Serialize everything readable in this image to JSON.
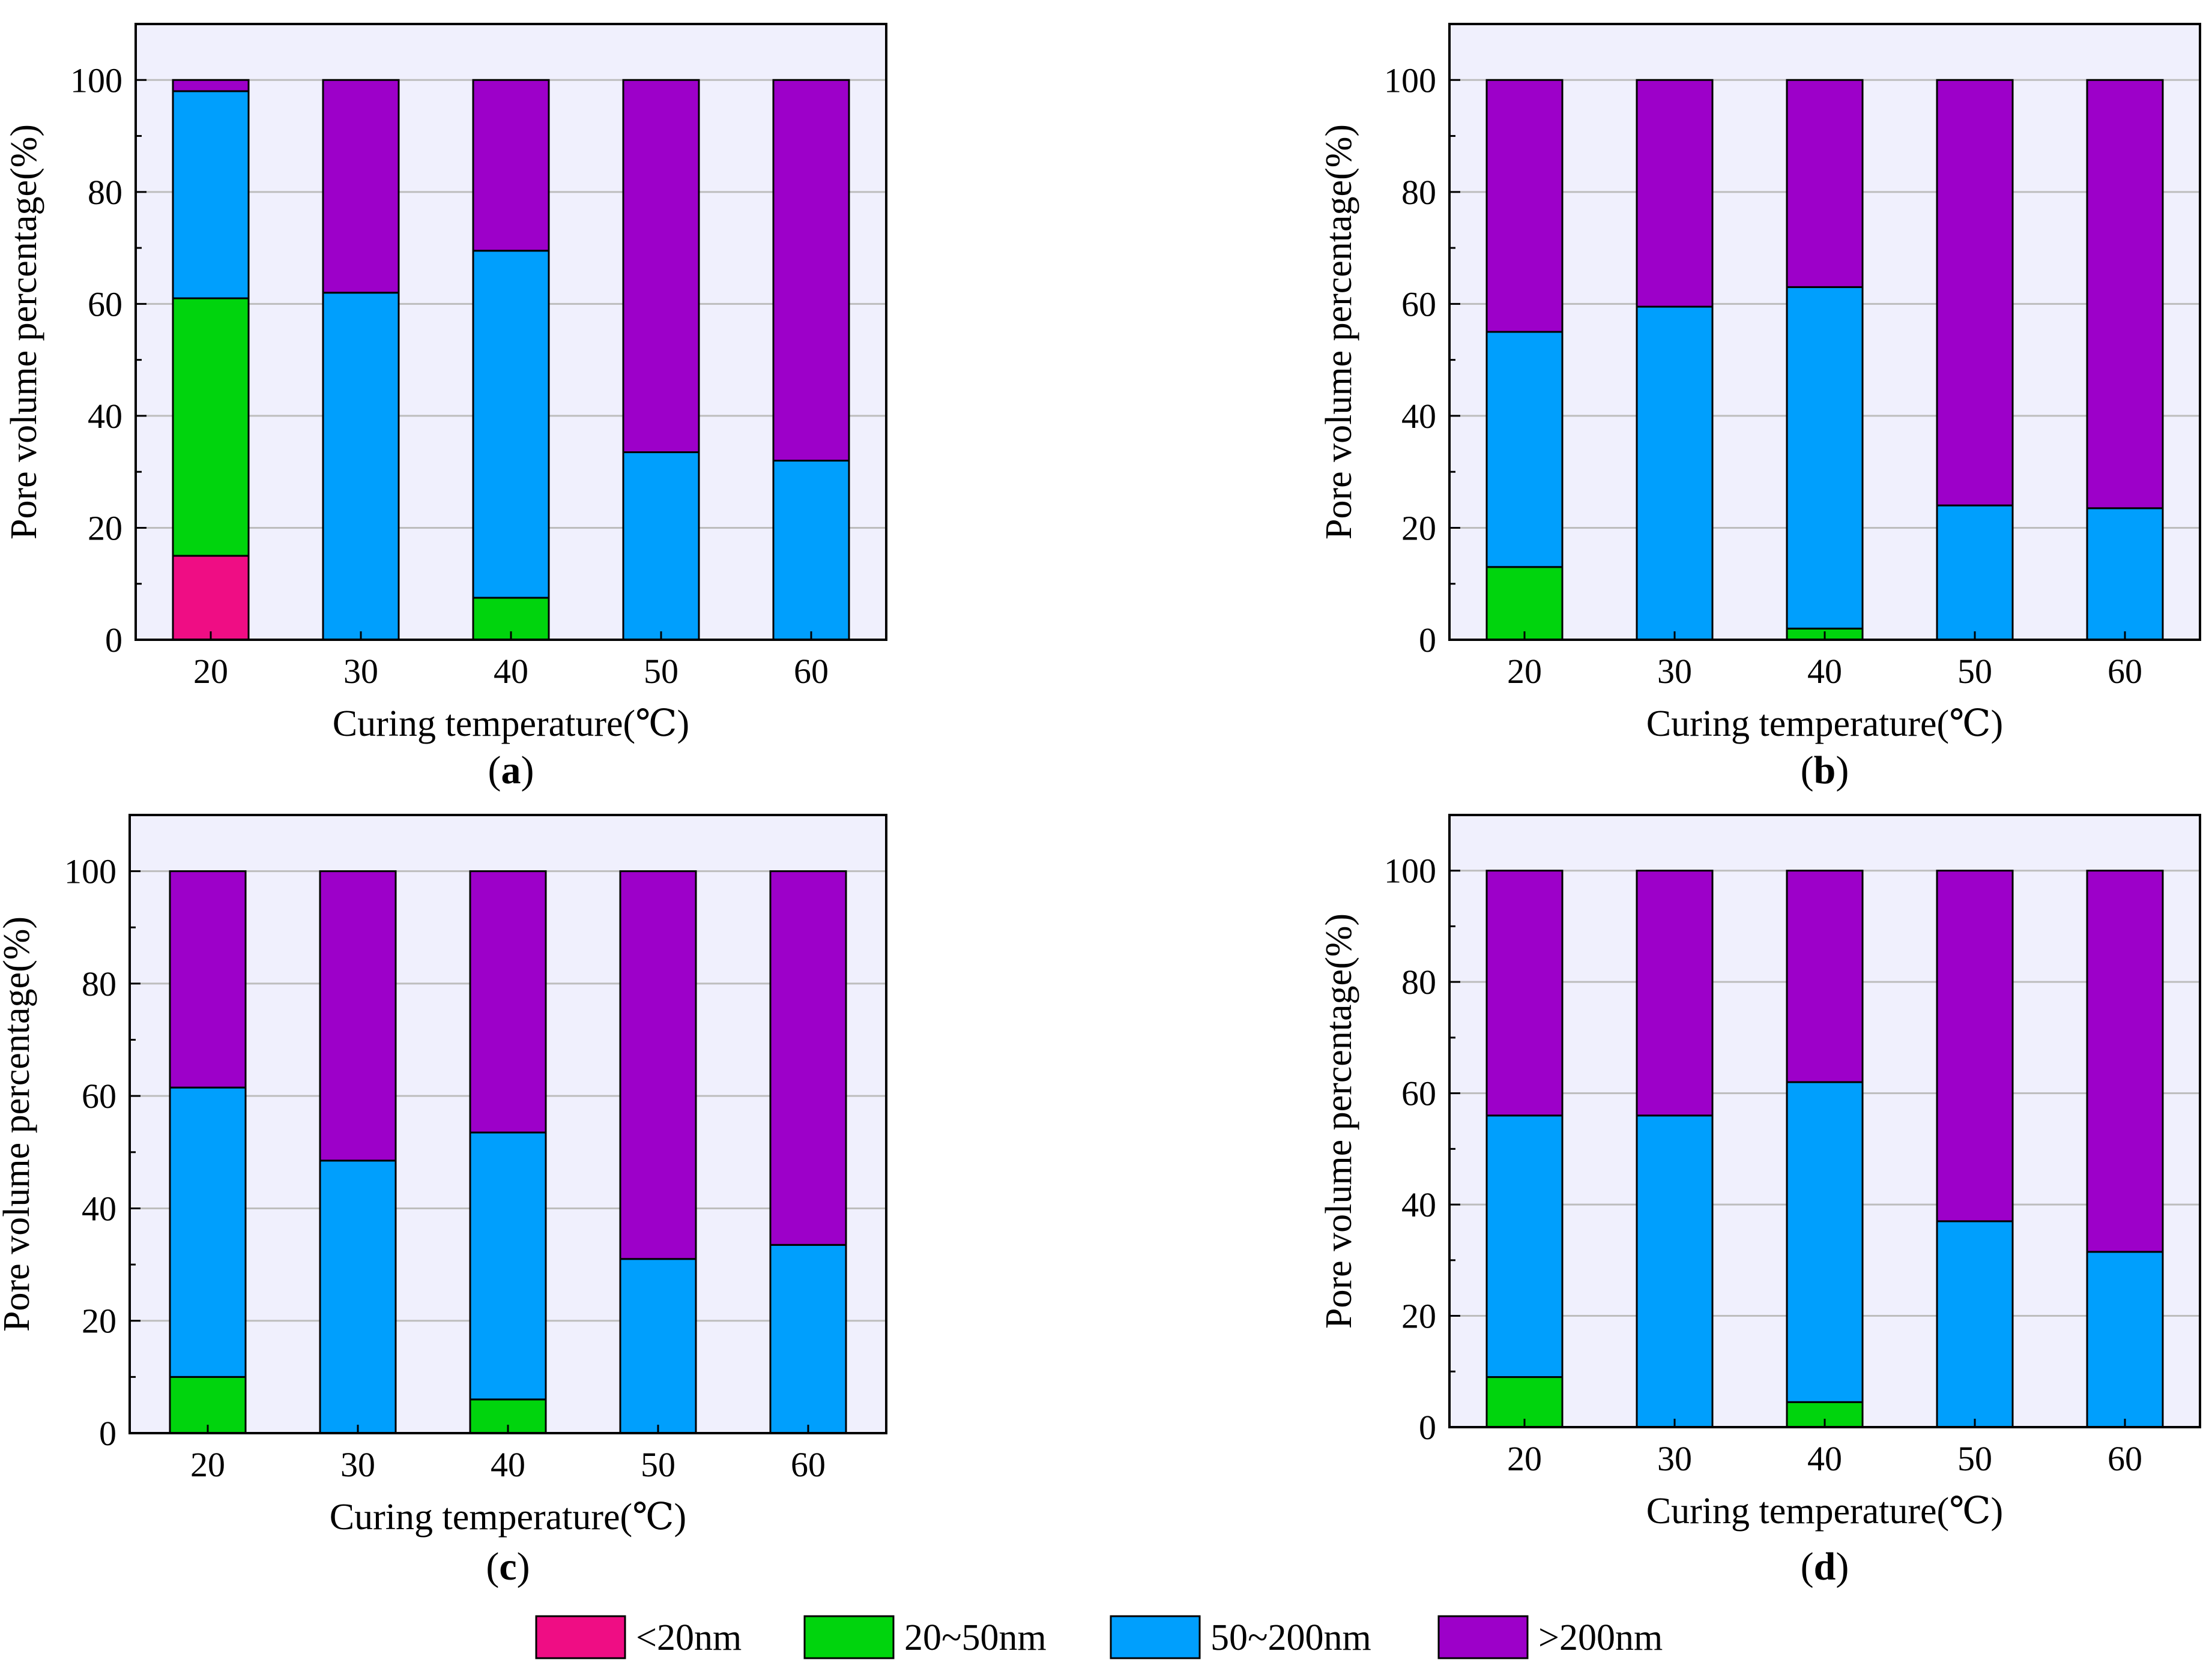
{
  "colors": {
    "plot_background": "#f0f0fd",
    "gridline": "#bdbdbd",
    "series": [
      "#ef0d84",
      "#00d40d",
      "#009ffd",
      "#9d00c9"
    ]
  },
  "legend": {
    "items": [
      {
        "label": "<20nm",
        "color": "#ef0d84"
      },
      {
        "label": "20~50nm",
        "color": "#00d40d"
      },
      {
        "label": "50~200nm",
        "color": "#009ffd"
      },
      {
        "label": ">200nm",
        "color": "#9d00c9"
      }
    ]
  },
  "chart_data": [
    {
      "type": "bar",
      "stacked": true,
      "caption_letter": "a",
      "xlabel": "Curing temperature(℃)",
      "ylabel": "Pore volume percentage(%)",
      "categories": [
        "20",
        "30",
        "40",
        "50",
        "60"
      ],
      "yticks": [
        "0",
        "20",
        "40",
        "60",
        "80",
        "100"
      ],
      "ylim": [
        0,
        110
      ],
      "grid": true,
      "series": [
        {
          "name": "<20nm",
          "values": [
            15,
            0,
            0,
            0,
            0
          ]
        },
        {
          "name": "20~50nm",
          "values": [
            46,
            0,
            7.5,
            0,
            0
          ]
        },
        {
          "name": "50~200nm",
          "values": [
            37,
            62,
            62,
            33.5,
            32
          ]
        },
        {
          "name": ">200nm",
          "values": [
            2,
            38,
            30.5,
            66.5,
            68
          ]
        }
      ]
    },
    {
      "type": "bar",
      "stacked": true,
      "caption_letter": "b",
      "xlabel": "Curing temperature(℃)",
      "ylabel": "Pore volume percentage(%)",
      "categories": [
        "20",
        "30",
        "40",
        "50",
        "60"
      ],
      "yticks": [
        "0",
        "20",
        "40",
        "60",
        "80",
        "100"
      ],
      "ylim": [
        0,
        110
      ],
      "grid": true,
      "series": [
        {
          "name": "<20nm",
          "values": [
            0,
            0,
            0,
            0,
            0
          ]
        },
        {
          "name": "20~50nm",
          "values": [
            13,
            0,
            2,
            0,
            0
          ]
        },
        {
          "name": "50~200nm",
          "values": [
            42,
            59.5,
            61,
            24,
            23.5
          ]
        },
        {
          "name": ">200nm",
          "values": [
            45,
            40.5,
            37,
            76,
            76.5
          ]
        }
      ]
    },
    {
      "type": "bar",
      "stacked": true,
      "caption_letter": "c",
      "xlabel": "Curing temperature(℃)",
      "ylabel": "Pore volume percentage(%)",
      "categories": [
        "20",
        "30",
        "40",
        "50",
        "60"
      ],
      "yticks": [
        "0",
        "20",
        "40",
        "60",
        "80",
        "100"
      ],
      "ylim": [
        0,
        110
      ],
      "grid": true,
      "series": [
        {
          "name": "<20nm",
          "values": [
            0,
            0,
            0,
            0,
            0
          ]
        },
        {
          "name": "20~50nm",
          "values": [
            10,
            0,
            6,
            0,
            0
          ]
        },
        {
          "name": "50~200nm",
          "values": [
            51.5,
            48.5,
            47.5,
            31,
            33.5
          ]
        },
        {
          "name": ">200nm",
          "values": [
            38.5,
            51.5,
            46.5,
            69,
            66.5
          ]
        }
      ]
    },
    {
      "type": "bar",
      "stacked": true,
      "caption_letter": "d",
      "xlabel": "Curing temperature(℃)",
      "ylabel": "Pore volume percentage(%)",
      "categories": [
        "20",
        "30",
        "40",
        "50",
        "60"
      ],
      "yticks": [
        "0",
        "20",
        "40",
        "60",
        "80",
        "100"
      ],
      "ylim": [
        0,
        110
      ],
      "grid": true,
      "series": [
        {
          "name": "<20nm",
          "values": [
            0,
            0,
            0,
            0,
            0
          ]
        },
        {
          "name": "20~50nm",
          "values": [
            9,
            0,
            4.5,
            0,
            0
          ]
        },
        {
          "name": "50~200nm",
          "values": [
            47,
            56,
            57.5,
            37,
            31.5
          ]
        },
        {
          "name": ">200nm",
          "values": [
            44,
            44,
            38,
            63,
            68.5
          ]
        }
      ]
    }
  ]
}
